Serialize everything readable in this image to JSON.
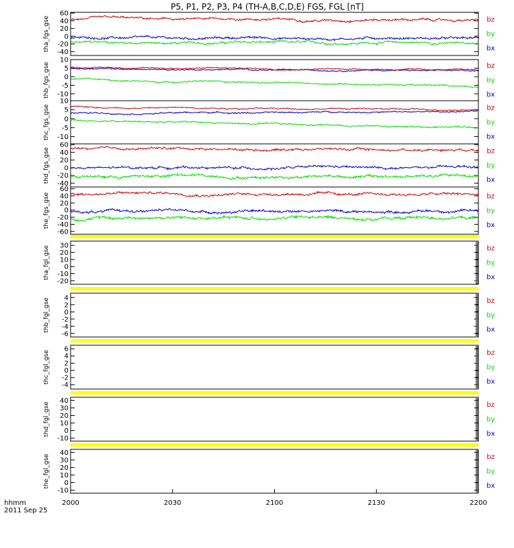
{
  "title": "P5, P1, P2, P3, P4 (TH-A,B,C,D,E) FGS, FGL [nT]",
  "footer": {
    "time_label": "hhmm",
    "date_label": "2011 Sep 25"
  },
  "colors": {
    "bz": "#d00000",
    "by": "#00dd00",
    "bx": "#0000c8",
    "flag": "#ffff00",
    "axis": "#000000"
  },
  "chart_data": {
    "type": "line",
    "x_ticks": [
      "2000",
      "2030",
      "2100",
      "2130",
      "2200"
    ],
    "x_range_minutes": [
      0,
      120
    ],
    "legend_labels": [
      "bz",
      "by",
      "bx"
    ],
    "panels": [
      {
        "ylabel": "tha_fgs_gse",
        "yticks": [
          "60",
          "40",
          "20",
          "0",
          "-20",
          "-40"
        ],
        "ylim": [
          -50,
          62
        ],
        "has_data": true,
        "series": {
          "bz": {
            "level": 45,
            "trend": -3,
            "noise": 4
          },
          "by": {
            "level": -17,
            "trend": 0,
            "noise": 4
          },
          "bx": {
            "level": -5,
            "trend": 0,
            "noise": 4
          }
        }
      },
      {
        "ylabel": "thb_fgs_gse",
        "yticks": [
          "10",
          "5",
          "0",
          "-5",
          "-10"
        ],
        "ylim": [
          -14,
          10
        ],
        "has_data": true,
        "series": {
          "bz": {
            "level": 5.5,
            "trend": -1.5,
            "noise": 0.5
          },
          "by": {
            "level": -1.5,
            "trend": -4,
            "noise": 0.6
          },
          "bx": {
            "level": 4.5,
            "trend": -1,
            "noise": 0.5
          }
        }
      },
      {
        "ylabel": "thc_fgs_gse",
        "yticks": [
          "10",
          "5",
          "0",
          "-5",
          "-10"
        ],
        "ylim": [
          -14,
          10
        ],
        "has_data": true,
        "series": {
          "bz": {
            "level": 6.5,
            "trend": -1.5,
            "noise": 0.5
          },
          "by": {
            "level": -1,
            "trend": -4,
            "noise": 0.6
          },
          "bx": {
            "level": 3,
            "trend": 1,
            "noise": 0.5
          }
        }
      },
      {
        "ylabel": "thd_fgs_gse",
        "yticks": [
          "60",
          "40",
          "20",
          "0",
          "-20",
          "-40"
        ],
        "ylim": [
          -50,
          62
        ],
        "has_data": true,
        "series": {
          "bz": {
            "level": 50,
            "trend": -3,
            "noise": 4
          },
          "by": {
            "level": -22,
            "trend": 0,
            "noise": 5
          },
          "bx": {
            "level": 0,
            "trend": 0,
            "noise": 4
          }
        }
      },
      {
        "ylabel": "the_fgs_gse",
        "yticks": [
          "60",
          "40",
          "20",
          "0",
          "-20",
          "-40",
          "-60"
        ],
        "ylim": [
          -68,
          65
        ],
        "has_data": true,
        "series": {
          "bz": {
            "level": 48,
            "trend": -5,
            "noise": 5
          },
          "by": {
            "level": -22,
            "trend": 0,
            "noise": 6
          },
          "bx": {
            "level": -3,
            "trend": 0,
            "noise": 5
          }
        }
      },
      {
        "ylabel": "tha_fgl_gse",
        "yticks": [
          "30",
          "20",
          "10",
          "0",
          "-10",
          "-20"
        ],
        "ylim": [
          -25,
          36
        ],
        "has_data": false
      },
      {
        "ylabel": "thb_fgl_gse",
        "yticks": [
          "4",
          "2",
          "0",
          "-2",
          "-4",
          "-6"
        ],
        "ylim": [
          -7,
          5.2
        ],
        "has_data": false
      },
      {
        "ylabel": "thc_fgl_gse",
        "yticks": [
          "6",
          "4",
          "2",
          "0",
          "-2",
          "-4"
        ],
        "ylim": [
          -5.2,
          7
        ],
        "has_data": false
      },
      {
        "ylabel": "thd_fgl_gse",
        "yticks": [
          "40",
          "30",
          "20",
          "10",
          "0",
          "-10"
        ],
        "ylim": [
          -14,
          44
        ],
        "has_data": false
      },
      {
        "ylabel": "the_fgl_gse",
        "yticks": [
          "40",
          "30",
          "20",
          "10",
          "0",
          "-10"
        ],
        "ylim": [
          -14,
          44
        ],
        "has_data": false
      }
    ]
  }
}
